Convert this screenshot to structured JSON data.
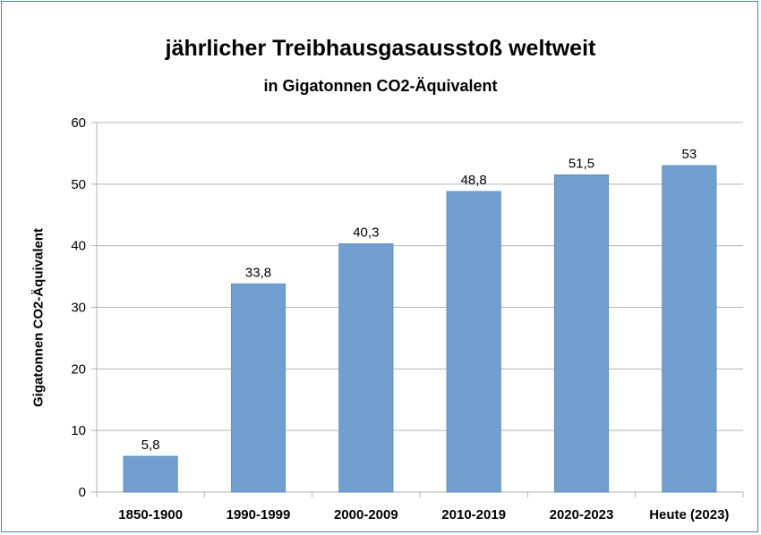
{
  "chart_data": {
    "type": "bar",
    "title": "jährlicher Treibhausgasausstoß weltweit",
    "subtitle": "in Gigatonnen CO2-Äquivalent",
    "xlabel": "",
    "ylabel": "Gigatonnen CO2-Äquivalent",
    "categories": [
      "1850-1900",
      "1990-1999",
      "2000-2009",
      "2010-2019",
      "2020-2023",
      "Heute (2023)"
    ],
    "values": [
      5.8,
      33.8,
      40.3,
      48.8,
      51.5,
      53
    ],
    "value_labels": [
      "5,8",
      "33,8",
      "40,3",
      "48,8",
      "51,5",
      "53"
    ],
    "ylim": [
      0,
      60
    ],
    "yticks": [
      "0",
      "10",
      "20",
      "30",
      "40",
      "50",
      "60"
    ],
    "grid": true,
    "legend": "none",
    "bar_color": "#729fcf"
  }
}
